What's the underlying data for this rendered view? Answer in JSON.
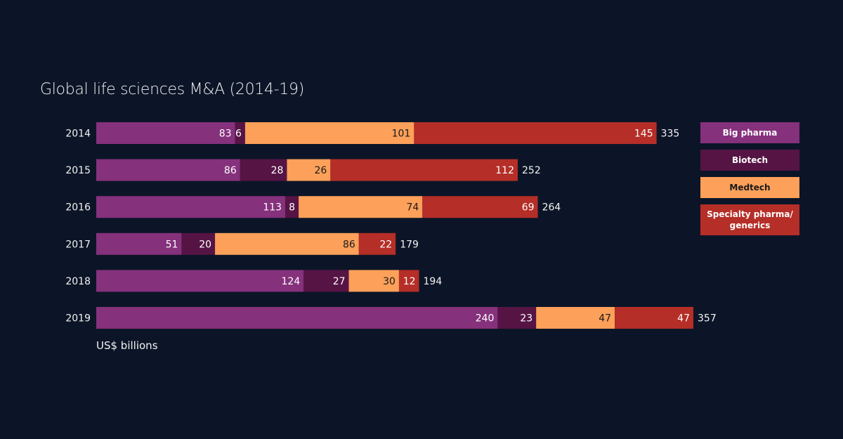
{
  "chart_data": {
    "type": "bar",
    "orientation": "horizontal",
    "stacked": true,
    "title": "Global life sciences M&A (2014-19)",
    "xlabel": "US$ billions",
    "ylabel": "",
    "categories": [
      "2014",
      "2015",
      "2016",
      "2017",
      "2018",
      "2019"
    ],
    "series": [
      {
        "name": "Big pharma",
        "color": "#85317c",
        "label_color": "#ffffff",
        "values": [
          83,
          86,
          113,
          51,
          124,
          240
        ]
      },
      {
        "name": "Biotech",
        "color": "#561445",
        "label_color": "#ffffff",
        "values": [
          6,
          28,
          8,
          20,
          27,
          23
        ]
      },
      {
        "name": "Medtech",
        "color": "#fca05a",
        "label_color": "#1a1a1a",
        "values": [
          101,
          26,
          74,
          86,
          30,
          47
        ]
      },
      {
        "name": "Specialty pharma/ generics",
        "color": "#b52e27",
        "label_color": "#ffffff",
        "values": [
          145,
          112,
          69,
          22,
          12,
          47
        ]
      }
    ],
    "totals": [
      335,
      252,
      264,
      179,
      194,
      357
    ],
    "xlim": [
      0,
      357
    ],
    "grid": false,
    "legend_position": "right"
  }
}
